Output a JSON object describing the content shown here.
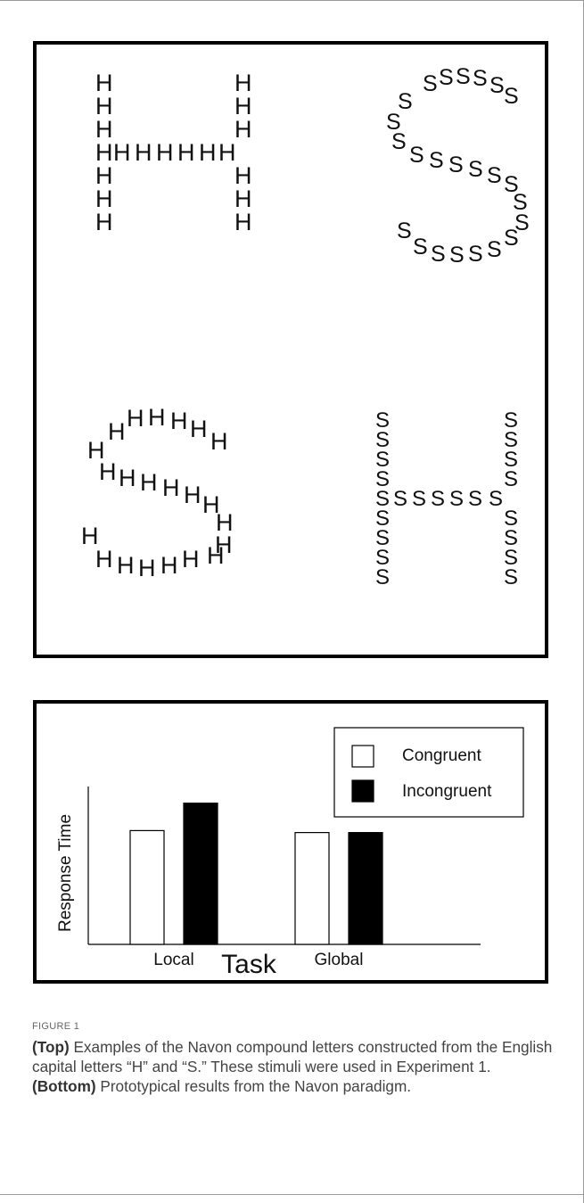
{
  "figure_top": {
    "panels": [
      {
        "id": "H_of_H",
        "global_shape": "H",
        "local_letter": "H"
      },
      {
        "id": "S_of_S",
        "global_shape": "S",
        "local_letter": "S"
      },
      {
        "id": "S_of_H",
        "global_shape": "S",
        "local_letter": "H"
      },
      {
        "id": "H_of_S",
        "global_shape": "H",
        "local_letter": "S"
      }
    ]
  },
  "chart_data": {
    "type": "bar",
    "categories": [
      "Local",
      "Global"
    ],
    "series": [
      {
        "name": "Congruent",
        "values": [
          0.58,
          0.57
        ],
        "color": "#ffffff"
      },
      {
        "name": "Incongruent",
        "values": [
          0.72,
          0.57
        ],
        "color": "#000000"
      }
    ],
    "xlabel": "Task",
    "ylabel": "Response Time",
    "ylim": [
      0,
      1
    ],
    "grid": false,
    "legend_position": "top-right"
  },
  "caption": {
    "label": "FIGURE 1",
    "top_bold": "(Top)",
    "top_text": " Examples of the Navon compound letters constructed from the English capital letters “H” and “S.” These stimuli were used in Experiment 1. ",
    "bottom_bold": "(Bottom)",
    "bottom_text": " Prototypical results from the Navon paradigm."
  }
}
